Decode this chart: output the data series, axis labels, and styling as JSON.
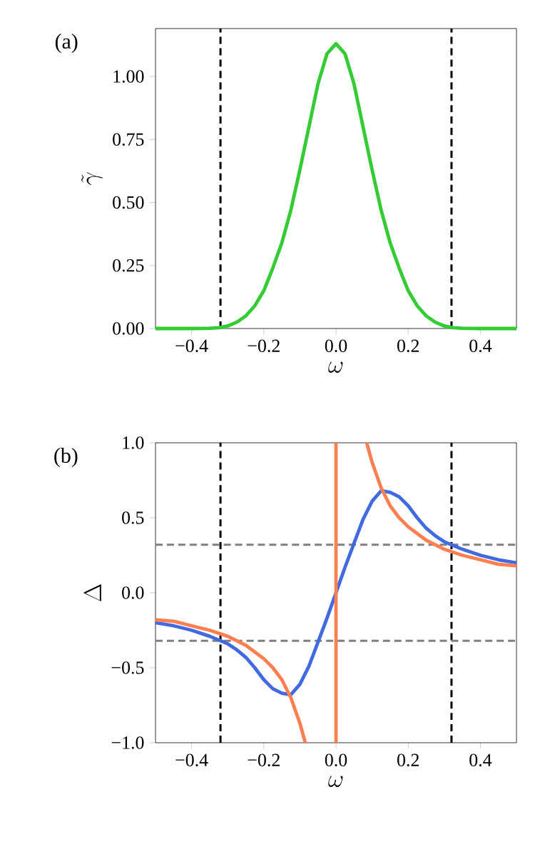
{
  "chart_data": [
    {
      "type": "line",
      "annotations": [
        "(a)"
      ],
      "xlabel": "\\omega",
      "ylabel": "\\tilde{\\gamma}",
      "xlim": [
        -0.5,
        0.5
      ],
      "ylim": [
        0,
        1.19
      ],
      "xticks": [
        {
          "value": -0.4,
          "label": "−0.4"
        },
        {
          "value": -0.2,
          "label": "−0.2"
        },
        {
          "value": 0,
          "label": "0.0"
        },
        {
          "value": 0.2,
          "label": "0.2"
        },
        {
          "value": 0.4,
          "label": "0.4"
        }
      ],
      "yticks": [
        {
          "value": 0,
          "label": "0.00"
        },
        {
          "value": 0.25,
          "label": "0.25"
        },
        {
          "value": 0.5,
          "label": "0.50"
        },
        {
          "value": 0.75,
          "label": "0.75"
        },
        {
          "value": 1,
          "label": "1.00"
        }
      ],
      "series": [
        {
          "color": "#33cc33",
          "x": [
            -0.5,
            -0.4,
            -0.35,
            -0.325,
            -0.3,
            -0.275,
            -0.25,
            -0.225,
            -0.2,
            -0.175,
            -0.15,
            -0.125,
            -0.1,
            -0.075,
            -0.05,
            -0.025,
            0,
            0.025,
            0.05,
            0.075,
            0.1,
            0.125,
            0.15,
            0.175,
            0.2,
            0.225,
            0.25,
            0.275,
            0.3,
            0.325,
            0.35,
            0.4,
            0.5
          ],
          "values": [
            0,
            0,
            0.001,
            0.003,
            0.01,
            0.025,
            0.05,
            0.09,
            0.15,
            0.24,
            0.34,
            0.47,
            0.63,
            0.8,
            0.97,
            1.09,
            1.13,
            1.09,
            0.97,
            0.8,
            0.63,
            0.47,
            0.34,
            0.24,
            0.15,
            0.09,
            0.05,
            0.025,
            0.01,
            0.003,
            0.001,
            0,
            0
          ]
        }
      ],
      "ref_lines": [
        {
          "axis": "x",
          "value": -0.32,
          "color": "#000000",
          "line_style": "dashed"
        },
        {
          "axis": "x",
          "value": 0.32,
          "color": "#000000",
          "line_style": "dashed"
        }
      ]
    },
    {
      "type": "line",
      "annotations": [
        "(b)"
      ],
      "xlabel": "\\omega",
      "ylabel": "\\Delta",
      "xlim": [
        -0.5,
        0.5
      ],
      "ylim": [
        -1,
        1
      ],
      "xticks": [
        {
          "value": -0.4,
          "label": "−0.4"
        },
        {
          "value": -0.2,
          "label": "−0.2"
        },
        {
          "value": 0,
          "label": "0.0"
        },
        {
          "value": 0.2,
          "label": "0.2"
        },
        {
          "value": 0.4,
          "label": "0.4"
        }
      ],
      "yticks": [
        {
          "value": -1,
          "label": "−1.0"
        },
        {
          "value": -0.5,
          "label": "−0.5"
        },
        {
          "value": 0,
          "label": "0.0"
        },
        {
          "value": 0.5,
          "label": "0.5"
        },
        {
          "value": 1,
          "label": "1.0"
        }
      ],
      "series": [
        {
          "color": "#4169e1",
          "x": [
            -0.5,
            -0.45,
            -0.4,
            -0.35,
            -0.3,
            -0.275,
            -0.25,
            -0.225,
            -0.2,
            -0.175,
            -0.15,
            -0.125,
            -0.1,
            -0.075,
            -0.05,
            -0.025,
            0,
            0.025,
            0.05,
            0.075,
            0.1,
            0.125,
            0.15,
            0.175,
            0.2,
            0.225,
            0.25,
            0.275,
            0.3,
            0.35,
            0.4,
            0.45,
            0.5
          ],
          "values": [
            -0.2,
            -0.22,
            -0.25,
            -0.29,
            -0.34,
            -0.38,
            -0.43,
            -0.5,
            -0.58,
            -0.64,
            -0.67,
            -0.68,
            -0.61,
            -0.49,
            -0.33,
            -0.17,
            0,
            0.17,
            0.33,
            0.49,
            0.61,
            0.68,
            0.67,
            0.64,
            0.58,
            0.5,
            0.43,
            0.38,
            0.34,
            0.29,
            0.25,
            0.22,
            0.2
          ]
        },
        {
          "color": "#ff7f50",
          "x": [
            -0.5,
            -0.45,
            -0.4,
            -0.35,
            -0.3,
            -0.25,
            -0.2,
            -0.175,
            -0.15,
            -0.125,
            -0.1,
            -0.085
          ],
          "values": [
            -0.18,
            -0.19,
            -0.22,
            -0.25,
            -0.29,
            -0.35,
            -0.44,
            -0.5,
            -0.58,
            -0.7,
            -0.87,
            -1
          ]
        },
        {
          "color": "#ff7f50",
          "x": [
            0,
            0
          ],
          "values": [
            -1,
            1
          ]
        },
        {
          "color": "#ff7f50",
          "x": [
            0.085,
            0.1,
            0.125,
            0.15,
            0.175,
            0.2,
            0.25,
            0.3,
            0.35,
            0.4,
            0.45,
            0.5
          ],
          "values": [
            1,
            0.87,
            0.7,
            0.58,
            0.5,
            0.44,
            0.35,
            0.29,
            0.25,
            0.22,
            0.19,
            0.18
          ]
        }
      ],
      "ref_lines": [
        {
          "axis": "x",
          "value": -0.32,
          "color": "#000000",
          "line_style": "dashed"
        },
        {
          "axis": "x",
          "value": 0.32,
          "color": "#000000",
          "line_style": "dashed"
        },
        {
          "axis": "y",
          "value": -0.32,
          "color": "#808080",
          "line_style": "dashed"
        },
        {
          "axis": "y",
          "value": 0.32,
          "color": "#808080",
          "line_style": "dashed"
        }
      ]
    }
  ]
}
